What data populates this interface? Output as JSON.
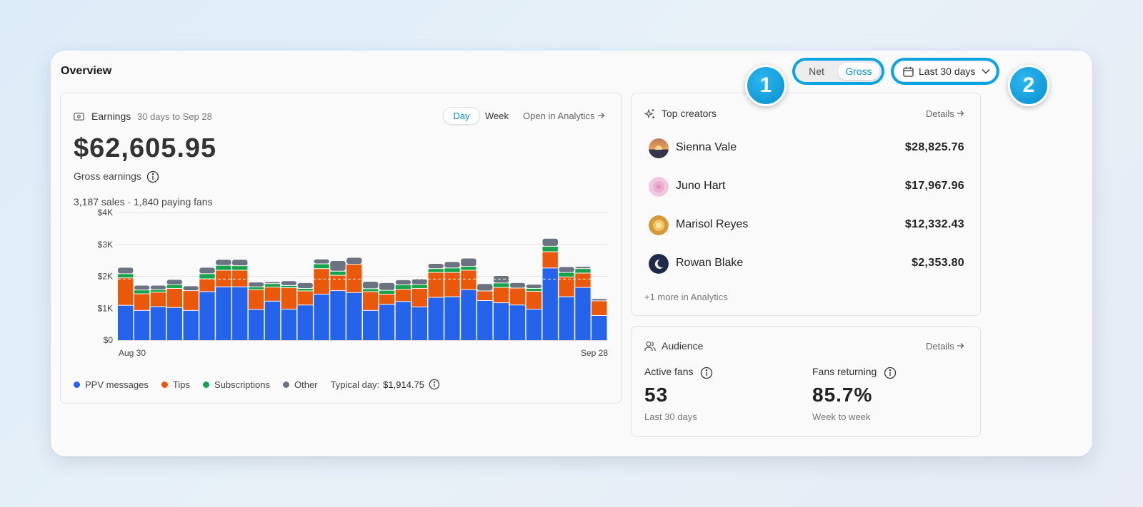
{
  "overview": {
    "title": "Overview"
  },
  "mode_toggle": {
    "net": "Net",
    "gross": "Gross",
    "selected": "Gross"
  },
  "date_range": {
    "label": "Last 30 days",
    "icon": "calendar-icon"
  },
  "markers": [
    "1",
    "2"
  ],
  "earnings": {
    "title": "Earnings",
    "range": "30 days to Sep 28",
    "day": "Day",
    "week": "Week",
    "open_link": "Open in Analytics",
    "value": "$62,605.95",
    "value_label": "Gross earnings",
    "sales": "3,187 sales · 1,840 paying fans",
    "legend": {
      "ppv": "PPV messages",
      "tips": "Tips",
      "subs": "Subscriptions",
      "other": "Other",
      "typical_label": "Typical day:",
      "typical_value": "$1,914.75"
    }
  },
  "chart_data": {
    "type": "bar",
    "stacked": true,
    "ylim": [
      0,
      4000
    ],
    "y_ticks": [
      "$0",
      "$1K",
      "$2K",
      "$3K",
      "$4K"
    ],
    "y_tick_values": [
      0,
      1000,
      2000,
      3000,
      4000
    ],
    "x_tick_labels": [
      "Aug 30",
      "Sep 28"
    ],
    "typical_day": 1914.75,
    "grid": true,
    "series": [
      {
        "name": "PPV messages",
        "color": "#2563eb",
        "values": [
          1080,
          920,
          1040,
          1010,
          920,
          1510,
          1660,
          1660,
          950,
          1210,
          960,
          1090,
          1430,
          1540,
          1480,
          920,
          1110,
          1200,
          1030,
          1330,
          1350,
          1570,
          1230,
          1160,
          1090,
          960,
          2250,
          1350,
          1640,
          760
        ]
      },
      {
        "name": "Tips",
        "color": "#ea580c",
        "values": [
          860,
          520,
          450,
          600,
          620,
          400,
          520,
          520,
          620,
          440,
          670,
          440,
          800,
          480,
          890,
          590,
          320,
          380,
          580,
          780,
          760,
          610,
          300,
          480,
          530,
          560,
          510,
          620,
          450,
          460
        ]
      },
      {
        "name": "Subscriptions",
        "color": "#16a34a",
        "values": [
          130,
          120,
          80,
          120,
          0,
          160,
          150,
          140,
          90,
          110,
          70,
          80,
          150,
          130,
          0,
          90,
          120,
          140,
          120,
          120,
          140,
          120,
          0,
          140,
          0,
          90,
          170,
          140,
          140,
          0
        ]
      },
      {
        "name": "Other",
        "color": "#6b7280",
        "values": [
          200,
          150,
          140,
          160,
          150,
          200,
          190,
          200,
          150,
          60,
          150,
          180,
          150,
          330,
          210,
          230,
          240,
          160,
          180,
          160,
          200,
          260,
          230,
          230,
          170,
          130,
          250,
          180,
          70,
          70
        ]
      }
    ]
  },
  "top_creators": {
    "title": "Top creators",
    "details": "Details",
    "items": [
      {
        "name": "Sienna Vale",
        "amount": "$28,825.76"
      },
      {
        "name": "Juno Hart",
        "amount": "$17,967.96"
      },
      {
        "name": "Marisol Reyes",
        "amount": "$12,332.43"
      },
      {
        "name": "Rowan Blake",
        "amount": "$2,353.80"
      }
    ],
    "more": "+1 more in Analytics"
  },
  "audience": {
    "title": "Audience",
    "details": "Details",
    "active": {
      "label": "Active fans",
      "value": "53",
      "sub": "Last 30 days"
    },
    "returning": {
      "label": "Fans returning",
      "value": "85.7%",
      "sub": "Week to week"
    }
  }
}
